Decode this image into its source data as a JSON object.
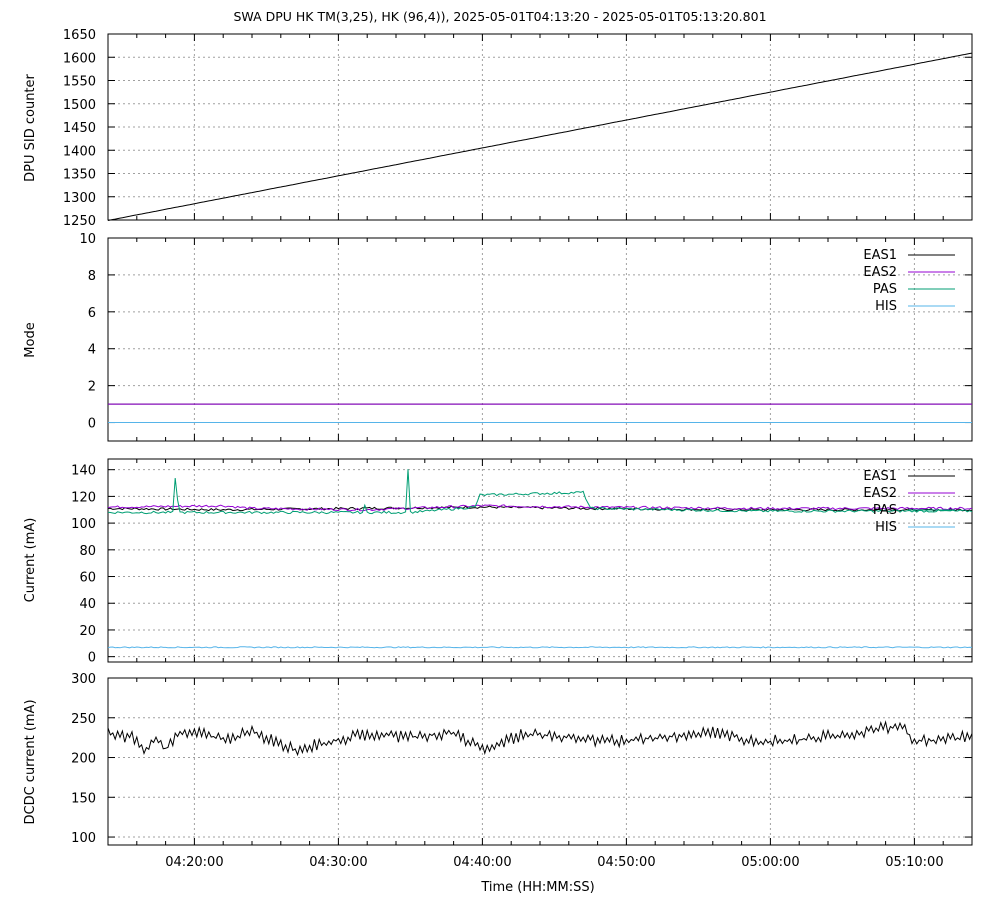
{
  "title": "SWA DPU HK TM(3,25), HK (96,4)),  2025-05-01T04:13:20 - 2025-05-01T05:13:20.801",
  "xlabel": "Time (HH:MM:SS)",
  "x_tick_labels": [
    "04:20:00",
    "04:30:00",
    "04:40:00",
    "04:50:00",
    "05:00:00",
    "05:10:00"
  ],
  "chart_data": [
    {
      "type": "line",
      "ylabel": "DPU SID counter",
      "xlim": [
        "04:13:20",
        "05:13:20"
      ],
      "ylim": [
        1250,
        1650
      ],
      "yticks": [
        1250,
        1300,
        1350,
        1400,
        1450,
        1500,
        1550,
        1600,
        1650
      ],
      "grid": true,
      "series": [
        {
          "values": [
            [
              0,
              1249
            ],
            [
              60,
              1609
            ]
          ],
          "color": "#000000"
        }
      ]
    },
    {
      "type": "line",
      "ylabel": "Mode",
      "xlim": [
        "04:13:20",
        "05:13:20"
      ],
      "ylim": [
        -1,
        10
      ],
      "yticks": [
        0,
        2,
        4,
        6,
        8,
        10
      ],
      "grid": true,
      "legend_position": "top-right",
      "series": [
        {
          "name": "EAS1",
          "color": "#000000",
          "values": [
            [
              0,
              1
            ],
            [
              60,
              1
            ]
          ]
        },
        {
          "name": "EAS2",
          "color": "#9400d3",
          "values": [
            [
              0,
              1
            ],
            [
              60,
              1
            ]
          ]
        },
        {
          "name": "PAS",
          "color": "#009e73",
          "values": [
            [
              0,
              0
            ],
            [
              60,
              0
            ]
          ]
        },
        {
          "name": "HIS",
          "color": "#56b4e9",
          "values": [
            [
              0,
              0
            ],
            [
              60,
              0
            ]
          ]
        }
      ]
    },
    {
      "type": "line",
      "ylabel": "Current (mA)",
      "xlim": [
        "04:13:20",
        "05:13:20"
      ],
      "ylim": [
        -4,
        148
      ],
      "yticks": [
        0,
        20,
        40,
        60,
        80,
        100,
        120,
        140
      ],
      "grid": true,
      "legend_position": "top-right",
      "series": [
        {
          "name": "EAS1",
          "color": "#000000",
          "values": [
            [
              0,
              111
            ],
            [
              8,
              110
            ],
            [
              26,
              112
            ],
            [
              33,
              111
            ],
            [
              45,
              110
            ],
            [
              60,
              110
            ]
          ]
        },
        {
          "name": "EAS2",
          "color": "#9400d3",
          "values": [
            [
              0,
              112
            ],
            [
              8,
              113
            ],
            [
              10,
              111
            ],
            [
              18,
              110
            ],
            [
              26,
              113
            ],
            [
              33,
              112
            ],
            [
              45,
              111
            ],
            [
              60,
              111
            ]
          ]
        },
        {
          "name": "PAS",
          "color": "#009e73",
          "values": [
            [
              0,
              108
            ],
            [
              4.5,
              108
            ],
            [
              4.7,
              138
            ],
            [
              4.9,
              108
            ],
            [
              17.8,
              108
            ],
            [
              17.9,
              122
            ],
            [
              18.0,
              108
            ],
            [
              20.7,
              108
            ],
            [
              20.8,
              148
            ],
            [
              21.0,
              108
            ],
            [
              25.5,
              112
            ],
            [
              25.8,
              121
            ],
            [
              33,
              123
            ],
            [
              33.5,
              111
            ],
            [
              45,
              109
            ],
            [
              60,
              109
            ]
          ]
        },
        {
          "name": "HIS",
          "color": "#56b4e9",
          "values": [
            [
              0,
              7
            ],
            [
              60,
              7
            ]
          ]
        }
      ]
    },
    {
      "type": "line",
      "ylabel": "DCDC current (mA)",
      "xlim": [
        "04:13:20",
        "05:13:20"
      ],
      "ylim": [
        90,
        300
      ],
      "yticks": [
        100,
        150,
        200,
        250,
        300
      ],
      "grid": true,
      "series": [
        {
          "color": "#000000",
          "values": [
            [
              0,
              231
            ],
            [
              2,
              224
            ],
            [
              2.5,
              210
            ],
            [
              3.5,
              224
            ],
            [
              4,
              210
            ],
            [
              5,
              230
            ],
            [
              6,
              233
            ],
            [
              8,
              222
            ],
            [
              10,
              232
            ],
            [
              13,
              210
            ],
            [
              16,
              222
            ],
            [
              18,
              230
            ],
            [
              21,
              226
            ],
            [
              24,
              231
            ],
            [
              26,
              210
            ],
            [
              29,
              230
            ],
            [
              33,
              223
            ],
            [
              36,
              221
            ],
            [
              42,
              232
            ],
            [
              45,
              220
            ],
            [
              48,
              222
            ],
            [
              52,
              231
            ],
            [
              55,
              240
            ],
            [
              56,
              220
            ],
            [
              60,
              226
            ]
          ]
        }
      ]
    }
  ]
}
